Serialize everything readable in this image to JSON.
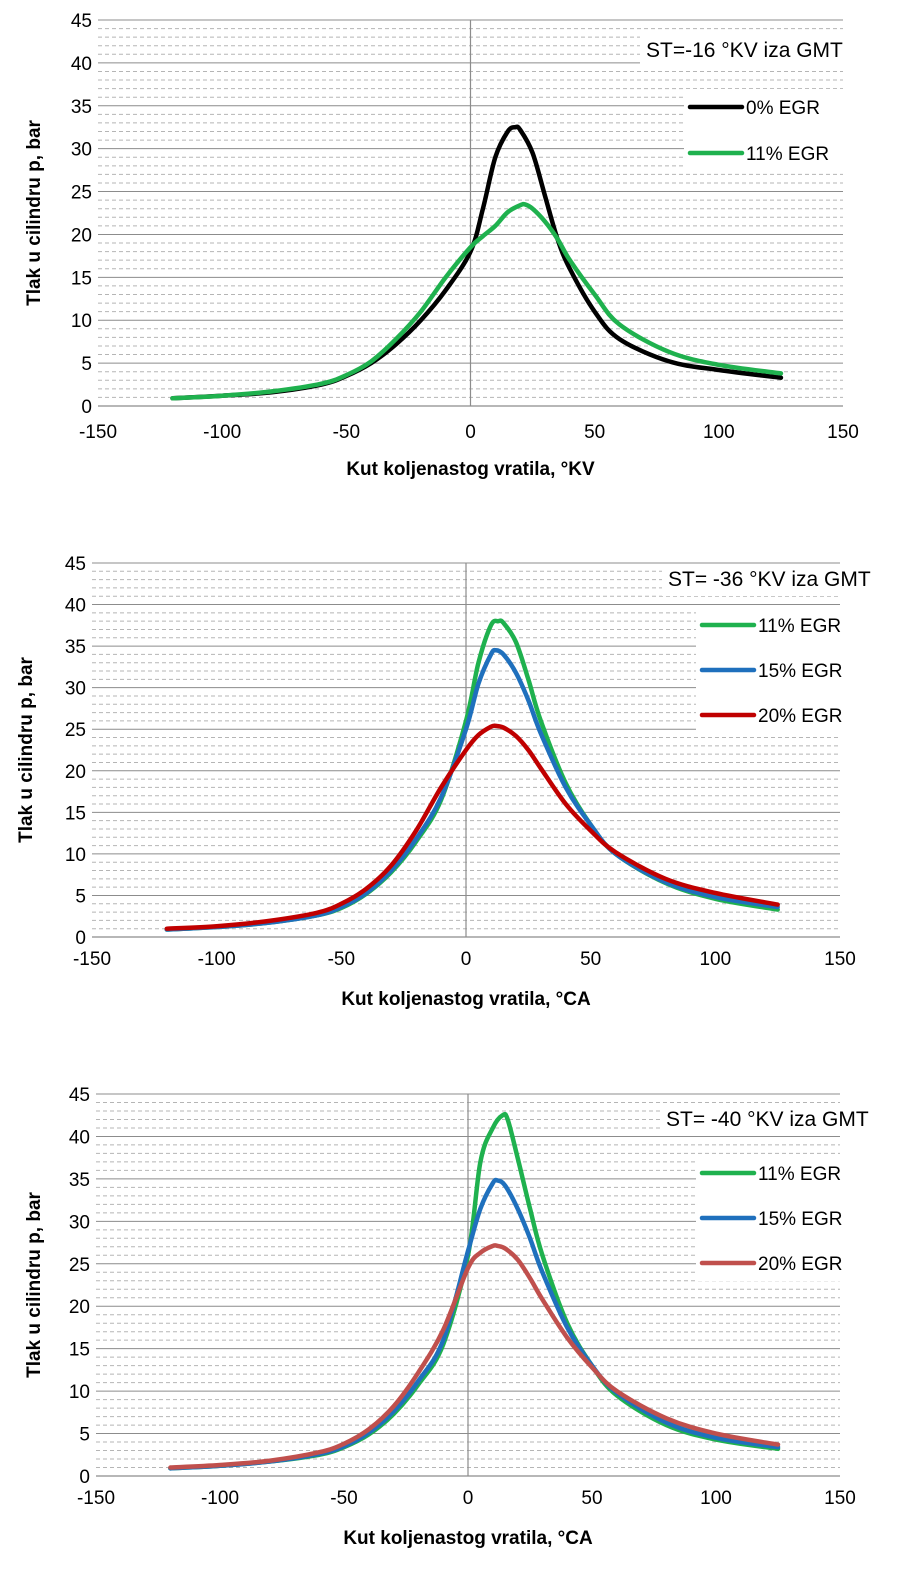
{
  "chart_data": [
    {
      "type": "line",
      "annotation": "ST=-16 °KV iza GMT",
      "xlabel": "Kut koljenastog vratila, °KV",
      "ylabel": "Tlak u cilindru p, bar",
      "xlim": [
        -150,
        150
      ],
      "ylim": [
        0,
        45
      ],
      "xticks": [
        "-150",
        "-100",
        "-50",
        "0",
        "50",
        "100",
        "150"
      ],
      "yticks": [
        "0",
        "5",
        "10",
        "15",
        "20",
        "25",
        "30",
        "35",
        "40",
        "45"
      ],
      "grid": "horizontal-dashed",
      "legend_position": "top-right",
      "series": [
        {
          "name": "0% EGR",
          "color": "#000000",
          "x": [
            -120,
            -100,
            -80,
            -60,
            -50,
            -40,
            -30,
            -20,
            -10,
            0,
            5,
            10,
            15,
            18,
            20,
            25,
            30,
            35,
            40,
            50,
            60,
            80,
            100,
            125
          ],
          "y": [
            0.9,
            1.2,
            1.6,
            2.5,
            3.5,
            5.0,
            7.2,
            10.0,
            13.5,
            18.0,
            23.0,
            29.0,
            32.0,
            32.5,
            32.2,
            29.5,
            24.5,
            19.5,
            16.0,
            11.0,
            7.8,
            5.2,
            4.2,
            3.3
          ]
        },
        {
          "name": "11% EGR",
          "color": "#1fb14e",
          "x": [
            -120,
            -100,
            -80,
            -60,
            -50,
            -40,
            -30,
            -20,
            -10,
            0,
            5,
            10,
            15,
            20,
            22,
            25,
            30,
            35,
            40,
            50,
            60,
            80,
            100,
            125
          ],
          "y": [
            0.9,
            1.2,
            1.7,
            2.6,
            3.6,
            5.2,
            7.8,
            11.0,
            15.0,
            18.5,
            19.8,
            21.0,
            22.6,
            23.4,
            23.5,
            23.0,
            21.5,
            19.5,
            17.0,
            13.0,
            9.5,
            6.3,
            4.8,
            3.8
          ]
        }
      ]
    },
    {
      "type": "line",
      "annotation": "ST= -36 °KV iza GMT",
      "xlabel": "Kut koljenastog vratila, °CA",
      "ylabel": "Tlak u cilindru p, bar",
      "xlim": [
        -150,
        150
      ],
      "ylim": [
        0,
        45
      ],
      "xticks": [
        "-150",
        "-100",
        "-50",
        "0",
        "50",
        "100",
        "150"
      ],
      "yticks": [
        "0",
        "5",
        "10",
        "15",
        "20",
        "25",
        "30",
        "35",
        "40",
        "45"
      ],
      "grid": "horizontal-dashed",
      "legend_position": "top-right",
      "series": [
        {
          "name": "11% EGR",
          "color": "#1fb14e",
          "x": [
            -120,
            -100,
            -80,
            -60,
            -50,
            -40,
            -30,
            -20,
            -10,
            0,
            5,
            10,
            13,
            15,
            20,
            25,
            30,
            40,
            50,
            60,
            80,
            100,
            125
          ],
          "y": [
            0.9,
            1.2,
            1.7,
            2.6,
            3.5,
            5.2,
            7.8,
            11.5,
            16.5,
            26.0,
            33.0,
            37.5,
            38.0,
            37.8,
            35.5,
            31.0,
            26.0,
            18.5,
            13.5,
            10.0,
            6.5,
            4.6,
            3.3
          ]
        },
        {
          "name": "15% EGR",
          "color": "#1f70bd",
          "x": [
            -120,
            -100,
            -80,
            -60,
            -50,
            -40,
            -30,
            -20,
            -10,
            0,
            5,
            10,
            12,
            15,
            20,
            25,
            30,
            40,
            50,
            60,
            80,
            100,
            125
          ],
          "y": [
            0.9,
            1.2,
            1.7,
            2.6,
            3.6,
            5.3,
            8.0,
            11.8,
            16.8,
            25.0,
            30.5,
            34.0,
            34.5,
            34.0,
            31.8,
            28.5,
            24.5,
            18.0,
            13.5,
            10.0,
            6.6,
            4.8,
            3.6
          ]
        },
        {
          "name": "20% EGR",
          "color": "#c00000",
          "x": [
            -120,
            -100,
            -80,
            -60,
            -50,
            -40,
            -30,
            -20,
            -10,
            0,
            5,
            10,
            12,
            15,
            20,
            25,
            30,
            40,
            50,
            60,
            80,
            100,
            125
          ],
          "y": [
            1.0,
            1.3,
            1.9,
            2.9,
            4.0,
            5.8,
            8.6,
            12.8,
            18.0,
            22.5,
            24.3,
            25.3,
            25.4,
            25.2,
            24.2,
            22.5,
            20.3,
            16.0,
            12.8,
            10.2,
            7.0,
            5.3,
            3.9
          ]
        }
      ]
    },
    {
      "type": "line",
      "annotation": "ST= -40 °KV iza GMT",
      "xlabel": "Kut koljenastog vratila, °CA",
      "ylabel": "Tlak u cilindru p, bar",
      "xlim": [
        -150,
        150
      ],
      "ylim": [
        0,
        45
      ],
      "xticks": [
        "-150",
        "-100",
        "-50",
        "0",
        "50",
        "100",
        "150"
      ],
      "yticks": [
        "0",
        "5",
        "10",
        "15",
        "20",
        "25",
        "30",
        "35",
        "40",
        "45"
      ],
      "grid": "horizontal-dashed",
      "legend_position": "top-right",
      "series": [
        {
          "name": "11% EGR",
          "color": "#1fb14e",
          "x": [
            -120,
            -100,
            -80,
            -60,
            -50,
            -40,
            -30,
            -20,
            -10,
            0,
            5,
            10,
            14,
            16,
            20,
            25,
            30,
            40,
            50,
            60,
            80,
            100,
            125
          ],
          "y": [
            0.9,
            1.2,
            1.7,
            2.5,
            3.4,
            4.9,
            7.3,
            10.8,
            15.5,
            26.0,
            37.0,
            41.0,
            42.5,
            42.0,
            37.5,
            31.5,
            26.0,
            18.0,
            13.0,
            9.5,
            6.0,
            4.3,
            3.2
          ]
        },
        {
          "name": "15% EGR",
          "color": "#1f70bd",
          "x": [
            -120,
            -100,
            -80,
            -60,
            -50,
            -40,
            -30,
            -20,
            -10,
            0,
            5,
            10,
            12,
            15,
            20,
            25,
            30,
            40,
            50,
            60,
            80,
            100,
            125
          ],
          "y": [
            0.9,
            1.2,
            1.7,
            2.6,
            3.5,
            5.1,
            7.6,
            11.2,
            16.0,
            26.5,
            31.5,
            34.5,
            34.8,
            34.2,
            31.5,
            28.0,
            24.0,
            17.5,
            13.0,
            9.8,
            6.3,
            4.5,
            3.4
          ]
        },
        {
          "name": "20% EGR",
          "color": "#c0504d",
          "x": [
            -120,
            -100,
            -80,
            -60,
            -50,
            -40,
            -30,
            -20,
            -10,
            0,
            5,
            10,
            12,
            15,
            20,
            25,
            30,
            40,
            50,
            60,
            80,
            100,
            125
          ],
          "y": [
            1.0,
            1.3,
            1.8,
            2.8,
            3.8,
            5.5,
            8.2,
            12.2,
            17.2,
            24.5,
            26.3,
            27.1,
            27.1,
            26.8,
            25.5,
            23.3,
            20.8,
            16.3,
            12.8,
            10.0,
            6.8,
            5.0,
            3.7
          ]
        }
      ]
    }
  ]
}
